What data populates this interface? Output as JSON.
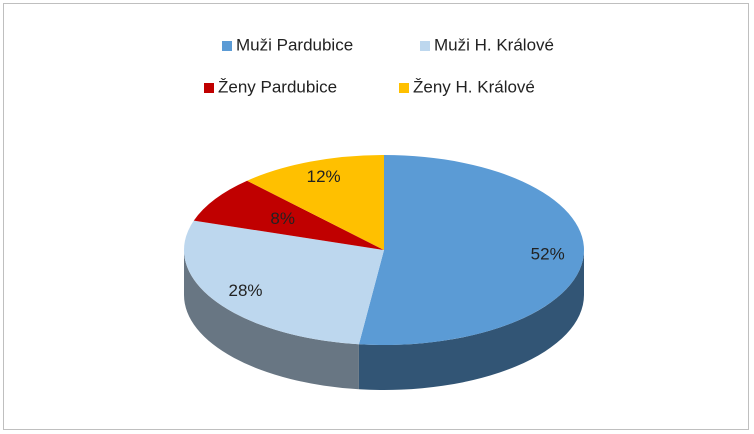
{
  "chart_data": {
    "type": "pie3d",
    "categories": [
      "Muži Pardubice",
      "Muži H. Králové",
      "Ženy Pardubice",
      "Ženy H. Králové"
    ],
    "values": [
      52,
      28,
      8,
      12
    ],
    "value_labels": [
      "52%",
      "28%",
      "8%",
      "12%"
    ],
    "colors": [
      "#5b9bd5",
      "#bdd7ee",
      "#c00000",
      "#ffc000"
    ],
    "legend": "top"
  }
}
